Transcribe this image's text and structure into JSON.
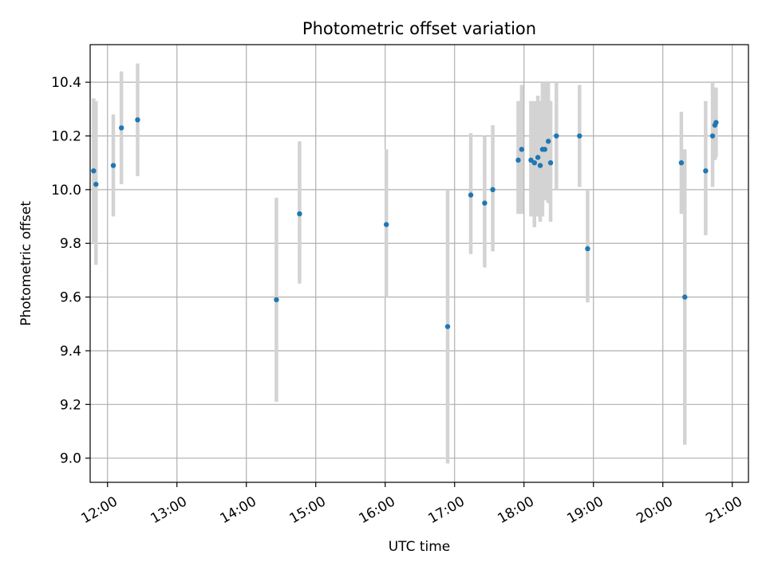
{
  "chart_data": {
    "type": "scatter",
    "title": "Photometric offset variation",
    "xlabel": "UTC time",
    "ylabel": "Photometric offset",
    "xlim": [
      "11:45",
      "21:14"
    ],
    "ylim": [
      8.91,
      10.54
    ],
    "x_ticks": [
      "12:00",
      "13:00",
      "14:00",
      "15:00",
      "16:00",
      "17:00",
      "18:00",
      "19:00",
      "20:00",
      "21:00"
    ],
    "y_ticks": [
      "9.0",
      "9.2",
      "9.4",
      "9.6",
      "9.8",
      "10.0",
      "10.2",
      "10.4"
    ],
    "grid": true,
    "marker_color": "#1f77b4",
    "errorbar_color": "#d3d3d3",
    "points": [
      {
        "t": "11:48",
        "y": 10.07,
        "lo": 9.8,
        "hi": 10.34
      },
      {
        "t": "11:50",
        "y": 10.02,
        "lo": 9.72,
        "hi": 10.33
      },
      {
        "t": "12:05",
        "y": 10.09,
        "lo": 9.9,
        "hi": 10.28
      },
      {
        "t": "12:12",
        "y": 10.23,
        "lo": 10.02,
        "hi": 10.44
      },
      {
        "t": "12:26",
        "y": 10.26,
        "lo": 10.05,
        "hi": 10.47
      },
      {
        "t": "14:26",
        "y": 9.59,
        "lo": 9.21,
        "hi": 9.97
      },
      {
        "t": "14:46",
        "y": 9.91,
        "lo": 9.65,
        "hi": 10.18
      },
      {
        "t": "16:01",
        "y": 9.87,
        "lo": 9.6,
        "hi": 10.15
      },
      {
        "t": "16:54",
        "y": 9.49,
        "lo": 8.98,
        "hi": 10.0
      },
      {
        "t": "17:14",
        "y": 9.98,
        "lo": 9.76,
        "hi": 10.21
      },
      {
        "t": "17:26",
        "y": 9.95,
        "lo": 9.71,
        "hi": 10.2
      },
      {
        "t": "17:33",
        "y": 10.0,
        "lo": 9.77,
        "hi": 10.24
      },
      {
        "t": "17:55",
        "y": 10.11,
        "lo": 9.91,
        "hi": 10.33
      },
      {
        "t": "17:58",
        "y": 10.15,
        "lo": 9.91,
        "hi": 10.39
      },
      {
        "t": "18:06",
        "y": 10.11,
        "lo": 9.9,
        "hi": 10.33
      },
      {
        "t": "18:09",
        "y": 10.1,
        "lo": 9.86,
        "hi": 10.33
      },
      {
        "t": "18:12",
        "y": 10.12,
        "lo": 9.9,
        "hi": 10.35
      },
      {
        "t": "18:14",
        "y": 10.09,
        "lo": 9.88,
        "hi": 10.33
      },
      {
        "t": "18:16",
        "y": 10.15,
        "lo": 9.9,
        "hi": 10.4
      },
      {
        "t": "18:18",
        "y": 10.15,
        "lo": 9.96,
        "hi": 10.4
      },
      {
        "t": "18:21",
        "y": 10.18,
        "lo": 9.95,
        "hi": 10.4
      },
      {
        "t": "18:23",
        "y": 10.1,
        "lo": 9.88,
        "hi": 10.33
      },
      {
        "t": "18:28",
        "y": 10.2,
        "lo": 10.0,
        "hi": 10.4
      },
      {
        "t": "18:48",
        "y": 10.2,
        "lo": 10.01,
        "hi": 10.39
      },
      {
        "t": "18:55",
        "y": 9.78,
        "lo": 9.58,
        "hi": 10.0
      },
      {
        "t": "20:16",
        "y": 10.1,
        "lo": 9.91,
        "hi": 10.29
      },
      {
        "t": "20:19",
        "y": 9.6,
        "lo": 9.05,
        "hi": 10.15
      },
      {
        "t": "20:37",
        "y": 10.07,
        "lo": 9.83,
        "hi": 10.33
      },
      {
        "t": "20:43",
        "y": 10.2,
        "lo": 10.01,
        "hi": 10.4
      },
      {
        "t": "20:45",
        "y": 10.24,
        "lo": 10.11,
        "hi": 10.38
      },
      {
        "t": "20:46",
        "y": 10.25,
        "lo": 10.12,
        "hi": 10.38
      }
    ]
  }
}
